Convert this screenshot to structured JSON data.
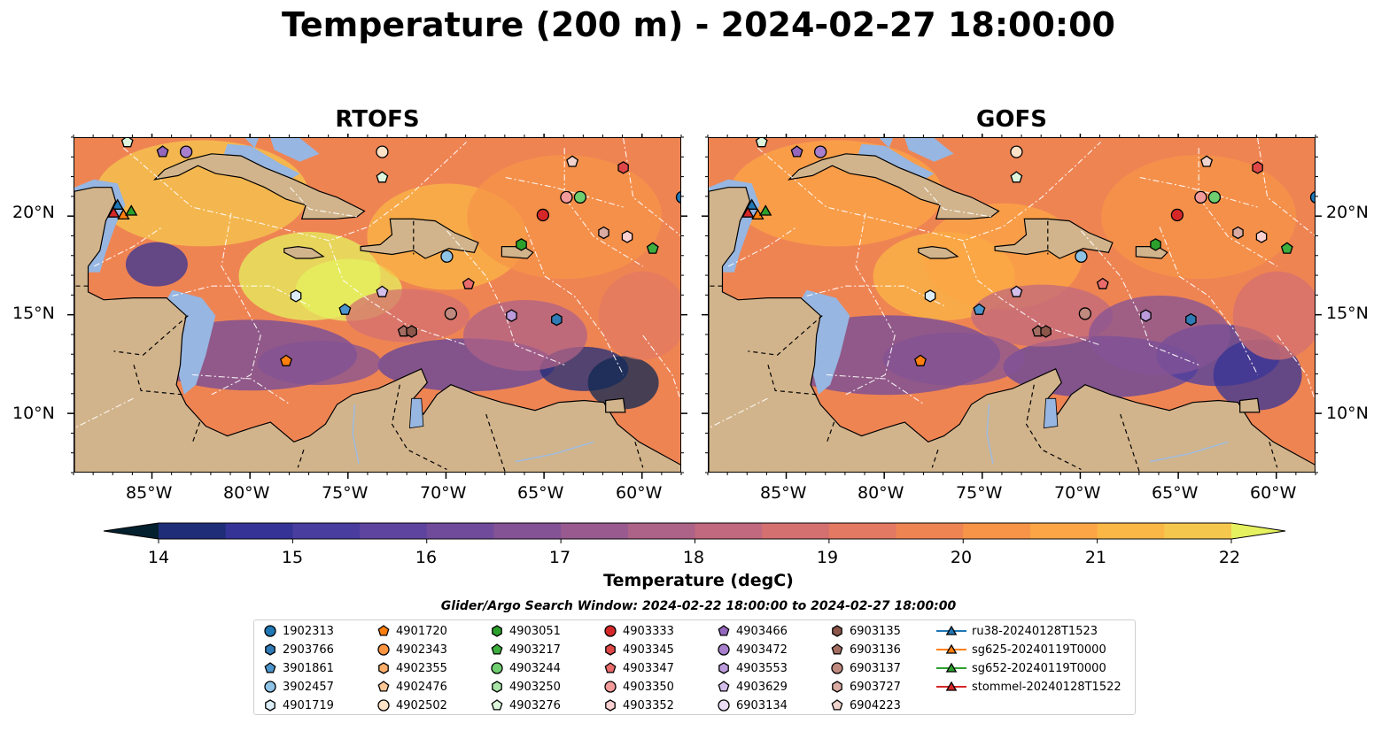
{
  "title": "Temperature (200 m) - 2024-02-27 18:00:00",
  "panels": [
    {
      "title": "RTOFS"
    },
    {
      "title": "GOFS"
    }
  ],
  "axes": {
    "lat_labels": [
      "20°N",
      "15°N",
      "10°N"
    ],
    "lon_labels": [
      "85°W",
      "80°W",
      "75°W",
      "70°W",
      "65°W",
      "60°W"
    ]
  },
  "colorbar": {
    "label": "Temperature (degC)",
    "ticks": [
      "14",
      "15",
      "16",
      "17",
      "18",
      "19",
      "20",
      "21",
      "22"
    ],
    "colormap": [
      "#04202e",
      "#0e2853",
      "#1f2d79",
      "#353396",
      "#4a3da0",
      "#5e449e",
      "#714b9b",
      "#845396",
      "#995a90",
      "#ad6287",
      "#c1697e",
      "#d47070",
      "#e37962",
      "#ef8453",
      "#f79448",
      "#fca546",
      "#fbb746",
      "#f5c84d",
      "#f0dc55",
      "#e6f15f"
    ],
    "range": [
      14,
      22
    ]
  },
  "search_window": "Glider/Argo Search Window: 2024-02-22 18:00:00 to 2024-02-27 18:00:00",
  "legend": [
    {
      "label": "1902313",
      "marker": "circle",
      "color": "#1f77b4"
    },
    {
      "label": "2903766",
      "marker": "hexagon",
      "color": "#2e7bb6"
    },
    {
      "label": "3901861",
      "marker": "pentagon",
      "color": "#4b95cc"
    },
    {
      "label": "3902457",
      "marker": "circle",
      "color": "#8ec3e6"
    },
    {
      "label": "4901719",
      "marker": "hexagon",
      "color": "#dcedf8"
    },
    {
      "label": "4901720",
      "marker": "pentagon",
      "color": "#ff7f0e"
    },
    {
      "label": "4902343",
      "marker": "circle",
      "color": "#fd9440"
    },
    {
      "label": "4902355",
      "marker": "hexagon",
      "color": "#fdae6b"
    },
    {
      "label": "4902476",
      "marker": "pentagon",
      "color": "#fdc896"
    },
    {
      "label": "4902502",
      "marker": "circle",
      "color": "#fee3c8"
    },
    {
      "label": "4903051",
      "marker": "hexagon",
      "color": "#2ca02c"
    },
    {
      "label": "4903217",
      "marker": "pentagon",
      "color": "#3eae3e"
    },
    {
      "label": "4903244",
      "marker": "circle",
      "color": "#6fce6f"
    },
    {
      "label": "4903250",
      "marker": "hexagon",
      "color": "#a8e3a8"
    },
    {
      "label": "4903276",
      "marker": "pentagon",
      "color": "#dcf5dc"
    },
    {
      "label": "4903333",
      "marker": "circle",
      "color": "#d62728"
    },
    {
      "label": "4903345",
      "marker": "hexagon",
      "color": "#e04848"
    },
    {
      "label": "4903347",
      "marker": "pentagon",
      "color": "#ea6b6b"
    },
    {
      "label": "4903350",
      "marker": "circle",
      "color": "#f39a9a"
    },
    {
      "label": "4903352",
      "marker": "hexagon",
      "color": "#fbd0d0"
    },
    {
      "label": "4903466",
      "marker": "pentagon",
      "color": "#9467bd"
    },
    {
      "label": "4903472",
      "marker": "circle",
      "color": "#a77fcc"
    },
    {
      "label": "4903553",
      "marker": "hexagon",
      "color": "#bb9bdb"
    },
    {
      "label": "4903629",
      "marker": "pentagon",
      "color": "#d4bfea"
    },
    {
      "label": "6903134",
      "marker": "circle",
      "color": "#ebdcf6"
    },
    {
      "label": "6903135",
      "marker": "hexagon",
      "color": "#8c564b"
    },
    {
      "label": "6903136",
      "marker": "pentagon",
      "color": "#a46d62"
    },
    {
      "label": "6903137",
      "marker": "circle",
      "color": "#c08a7f"
    },
    {
      "label": "6903727",
      "marker": "hexagon",
      "color": "#d9aba2"
    },
    {
      "label": "6904223",
      "marker": "pentagon",
      "color": "#f0d3cd"
    },
    {
      "label": "ru38-20240128T1523",
      "marker": "triangle",
      "color": "#1f77b4"
    },
    {
      "label": "sg625-20240119T0000",
      "marker": "triangle",
      "color": "#ff7f0e"
    },
    {
      "label": "sg652-20240119T0000",
      "marker": "triangle",
      "color": "#2ca02c"
    },
    {
      "label": "stommel-20240128T1522",
      "marker": "triangle",
      "color": "#d62728"
    }
  ],
  "map_extent": {
    "lon": [
      -89,
      -58
    ],
    "lat": [
      7,
      24
    ]
  },
  "land_color": "#d2b48c",
  "shelf_color": "#97b6e1",
  "argo_floats": [
    {
      "id": "1902313",
      "lon": -58,
      "lat": 21
    },
    {
      "id": "3902457",
      "lon": -70,
      "lat": 18
    },
    {
      "id": "3901861",
      "lon": -75.2,
      "lat": 15.3
    },
    {
      "id": "4901719",
      "lon": -77.7,
      "lat": 16
    },
    {
      "id": "4903629",
      "lon": -73.3,
      "lat": 16.2
    },
    {
      "id": "4902502",
      "lon": -73.3,
      "lat": 23.3
    },
    {
      "id": "4903276",
      "lon": -73.3,
      "lat": 22
    },
    {
      "id": "4903276",
      "lon": -86.3,
      "lat": 23.8
    },
    {
      "id": "4903466",
      "lon": -84.5,
      "lat": 23.3
    },
    {
      "id": "4903472",
      "lon": -83.3,
      "lat": 23.3
    },
    {
      "id": "4903333",
      "lon": -65.1,
      "lat": 20.1
    },
    {
      "id": "4903051",
      "lon": -66.2,
      "lat": 18.6
    },
    {
      "id": "4903217",
      "lon": -59.5,
      "lat": 18.4
    },
    {
      "id": "4903244",
      "lon": -63.2,
      "lat": 21
    },
    {
      "id": "4903350",
      "lon": -63.9,
      "lat": 21
    },
    {
      "id": "4903345",
      "lon": -61,
      "lat": 22.5
    },
    {
      "id": "6904223",
      "lon": -63.6,
      "lat": 22.8
    },
    {
      "id": "4903352",
      "lon": -60.8,
      "lat": 19
    },
    {
      "id": "6903727",
      "lon": -62,
      "lat": 19.2
    },
    {
      "id": "4903347",
      "lon": -68.9,
      "lat": 16.6
    },
    {
      "id": "6903137",
      "lon": -69.8,
      "lat": 15.1
    },
    {
      "id": "4903553",
      "lon": -66.7,
      "lat": 15
    },
    {
      "id": "2903766",
      "lon": -64.4,
      "lat": 14.8
    },
    {
      "id": "6903136",
      "lon": -72.2,
      "lat": 14.2
    },
    {
      "id": "6903135",
      "lon": -71.8,
      "lat": 14.2
    },
    {
      "id": "4901720",
      "lon": -78.2,
      "lat": 12.7
    }
  ],
  "gliders": [
    {
      "id": "ru38-20240128T1523",
      "lon": -86.8,
      "lat": 20.6
    },
    {
      "id": "sg625-20240119T0000",
      "lon": -86.5,
      "lat": 20.1
    },
    {
      "id": "sg652-20240119T0000",
      "lon": -86.1,
      "lat": 20.3
    },
    {
      "id": "stommel-20240128T1522",
      "lon": -87,
      "lat": 20.2
    }
  ]
}
